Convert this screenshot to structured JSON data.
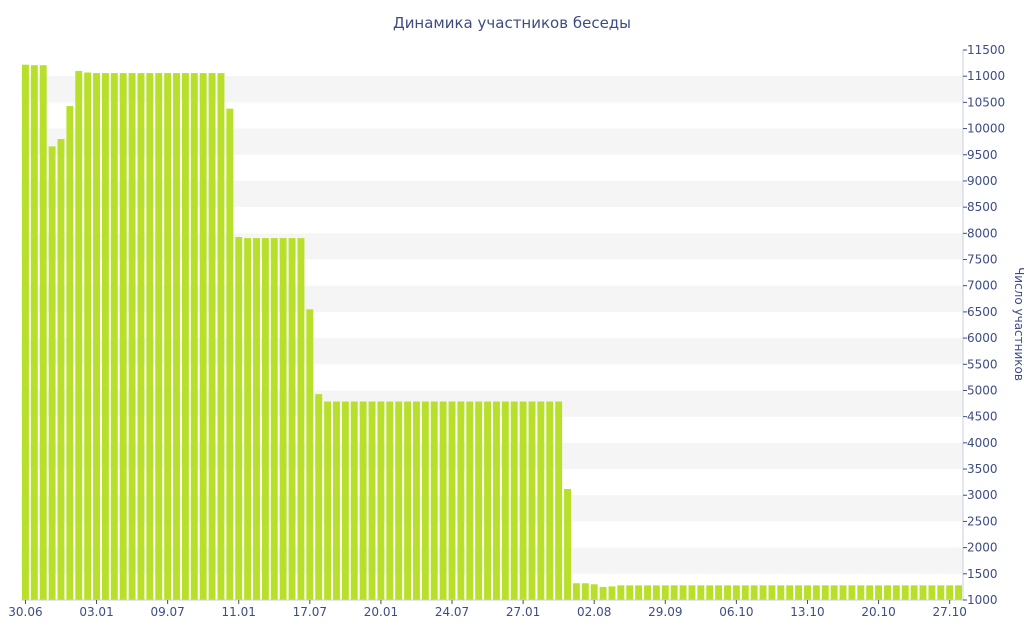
{
  "chart_data": {
    "type": "bar",
    "title": "Динамика участников беседы",
    "xlabel": "",
    "ylabel": "Число участников",
    "ylim": [
      1000,
      11500
    ],
    "y_axis_position": "right",
    "y_ticks": [
      1000,
      1500,
      2000,
      2500,
      3000,
      3500,
      4000,
      4500,
      5000,
      5500,
      6000,
      6500,
      7000,
      7500,
      8000,
      8500,
      9000,
      9500,
      10000,
      10500,
      11000,
      11500
    ],
    "x_tick_labels": [
      {
        "label": "30.06",
        "index": 0
      },
      {
        "label": "03.01",
        "index": 8
      },
      {
        "label": "09.07",
        "index": 16
      },
      {
        "label": "11.01",
        "index": 24
      },
      {
        "label": "17.07",
        "index": 32
      },
      {
        "label": "20.01",
        "index": 40
      },
      {
        "label": "24.07",
        "index": 48
      },
      {
        "label": "27.01",
        "index": 56
      },
      {
        "label": "02.08",
        "index": 64
      },
      {
        "label": "29.09",
        "index": 72
      },
      {
        "label": "06.10",
        "index": 80
      },
      {
        "label": "13.10",
        "index": 88
      },
      {
        "label": "20.10",
        "index": 96
      },
      {
        "label": "27.10",
        "index": 104
      }
    ],
    "bar_color": "#b8e02a",
    "grid": "alternating horizontal bands",
    "series": [
      {
        "values": [
          11220,
          11210,
          11210,
          9660,
          9800,
          10430,
          11100,
          11070,
          11060,
          11060,
          11060,
          11060,
          11060,
          11060,
          11060,
          11060,
          11060,
          11060,
          11060,
          11060,
          11060,
          11060,
          11060,
          10380,
          7930,
          7910,
          7910,
          7910,
          7910,
          7910,
          7910,
          7910,
          6550,
          4930,
          4790,
          4790,
          4790,
          4790,
          4790,
          4790,
          4790,
          4790,
          4790,
          4790,
          4790,
          4790,
          4790,
          4790,
          4790,
          4790,
          4790,
          4790,
          4790,
          4790,
          4790,
          4790,
          4790,
          4790,
          4790,
          4790,
          4790,
          3120,
          1320,
          1320,
          1300,
          1250,
          1260,
          1280,
          1280,
          1280,
          1280,
          1280,
          1280,
          1280,
          1280,
          1280,
          1280,
          1280,
          1280,
          1280,
          1280,
          1280,
          1280,
          1280,
          1280,
          1280,
          1280,
          1280,
          1280,
          1280,
          1280,
          1280,
          1280,
          1280,
          1280,
          1280,
          1280,
          1280,
          1280,
          1280,
          1280,
          1280,
          1280,
          1280,
          1280,
          1280
        ]
      }
    ]
  }
}
